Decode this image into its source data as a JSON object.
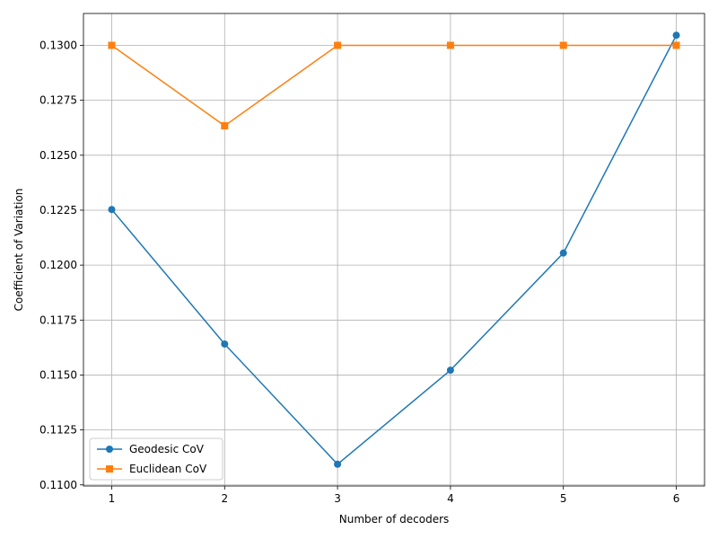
{
  "chart_data": {
    "type": "line",
    "title": "",
    "xlabel": "Number of decoders",
    "ylabel": "Coefficient of Variation",
    "x": [
      1,
      2,
      3,
      4,
      5,
      6
    ],
    "xlim": [
      0.75,
      6.25
    ],
    "ylim": [
      0.10995,
      0.13145
    ],
    "x_ticks": [
      "1",
      "2",
      "3",
      "4",
      "5",
      "6"
    ],
    "y_ticks": [
      "0.1100",
      "0.1125",
      "0.1150",
      "0.1175",
      "0.1200",
      "0.1225",
      "0.1250",
      "0.1275",
      "0.1300"
    ],
    "grid": true,
    "legend_position": "lower-left",
    "series": [
      {
        "name": "Geodesic CoV",
        "values": [
          0.12253,
          0.11641,
          0.11094,
          0.11522,
          0.12055,
          0.13046
        ],
        "color": "#1f77b4",
        "marker": "circle"
      },
      {
        "name": "Euclidean CoV",
        "values": [
          0.13,
          0.12634,
          0.13,
          0.13,
          0.13,
          0.13
        ],
        "color": "#ff7f0e",
        "marker": "square"
      }
    ]
  }
}
